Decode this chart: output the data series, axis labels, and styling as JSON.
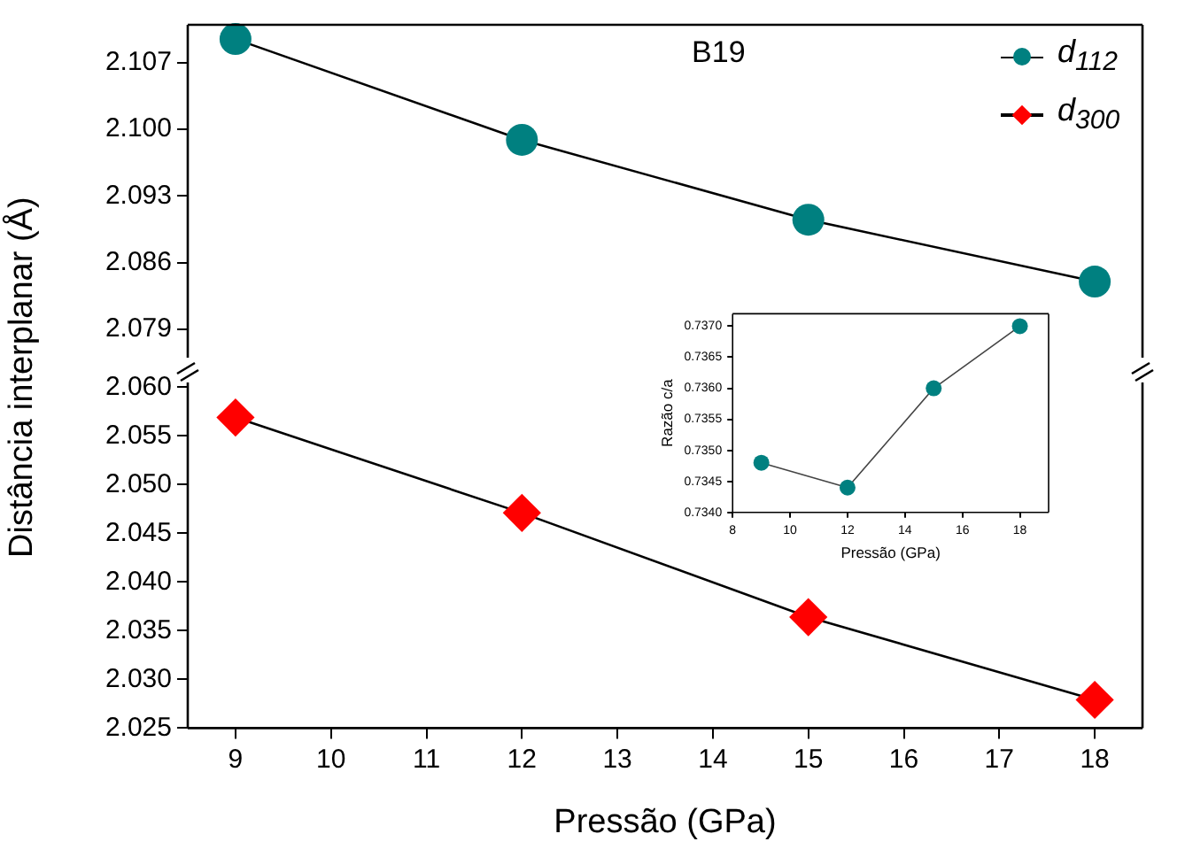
{
  "chart_data": [
    {
      "type": "line",
      "annotations": [
        "B19"
      ],
      "legend": "top right",
      "grid": false,
      "tick_labels": "y",
      "x": [
        9,
        12,
        15,
        18
      ],
      "xlim": [
        8.5,
        18.5
      ],
      "ylim": [
        2.076,
        2.111
      ],
      "yticks": [
        2.079,
        2.086,
        2.093,
        {
          "value": 2.1,
          "label": "2.100"
        },
        2.107
      ],
      "series": [
        {
          "name": "d$_{112}$",
          "color": "#008080",
          "marker": "circle",
          "values": [
            2.1095,
            2.0989,
            2.0905,
            2.084
          ]
        }
      ]
    },
    {
      "type": "line",
      "xlabel": "Pressão (GPa)",
      "ylabel": "Distância interplanar (Å)",
      "legend": "top right",
      "grid": false,
      "x": [
        9,
        12,
        15,
        18
      ],
      "xlim": [
        8.5,
        18.5
      ],
      "xticks": [
        9,
        10,
        11,
        12,
        13,
        14,
        15,
        16,
        17,
        18
      ],
      "ylim": [
        2.025,
        2.0605
      ],
      "yticks": [
        2.025,
        {
          "value": 2.03,
          "label": "2.030"
        },
        2.035,
        {
          "value": 2.04,
          "label": "2.040"
        },
        2.045,
        {
          "value": 2.05,
          "label": "2.050"
        },
        2.055,
        {
          "value": 2.06,
          "label": "2.060"
        }
      ],
      "series": [
        {
          "name": "d$_{300}$",
          "color": "#ff0000",
          "marker": "diamond",
          "values": [
            2.0569,
            2.0471,
            2.0364,
            2.0279
          ]
        }
      ]
    },
    {
      "type": "line",
      "xlabel": "Pressão (GPa)",
      "ylabel": "Razão c/a",
      "grid": false,
      "marker": "circle",
      "x": [
        9,
        12,
        15,
        18
      ],
      "xlim": [
        8,
        19
      ],
      "xticks": [
        8,
        10,
        12,
        14,
        16,
        18
      ],
      "ylim": [
        0.734,
        0.7372
      ],
      "yticks": [
        {
          "value": 0.734,
          "label": "0.7340"
        },
        0.7345,
        {
          "value": 0.735,
          "label": "0.7350"
        },
        0.7355,
        {
          "value": 0.736,
          "label": "0.7360"
        },
        0.7365,
        {
          "value": 0.737,
          "label": "0.7370"
        }
      ],
      "series": [
        {
          "color": "#008080",
          "values": [
            0.7348,
            0.7344,
            0.736,
            0.737
          ]
        }
      ]
    }
  ]
}
